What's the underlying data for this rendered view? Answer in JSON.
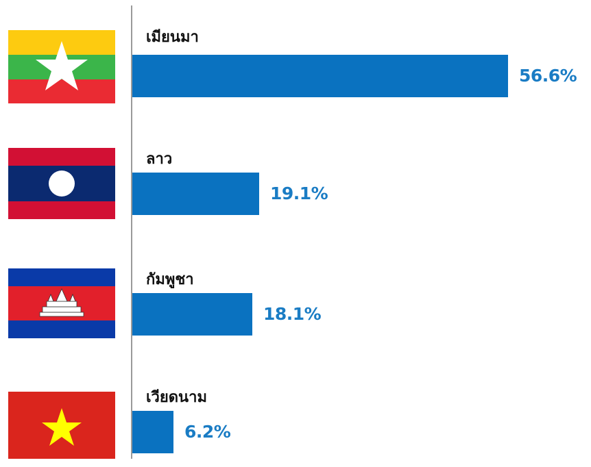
{
  "chart_data": {
    "type": "bar",
    "orientation": "horizontal",
    "categories": [
      "เมียนมา",
      "ลาว",
      "กัมพูชา",
      "เวียดนาม"
    ],
    "values": [
      56.6,
      19.1,
      18.1,
      6.2
    ],
    "value_labels": [
      "56.6%",
      "19.1%",
      "18.1%",
      "6.2%"
    ],
    "unit": "%",
    "xlim": [
      0,
      58
    ],
    "grid": false,
    "legend": "none",
    "flags": [
      "myanmar-flag",
      "laos-flag",
      "cambodia-flag",
      "vietnam-flag"
    ],
    "bar_color": "#0a72c0",
    "label_color": "#1a7cc4"
  }
}
